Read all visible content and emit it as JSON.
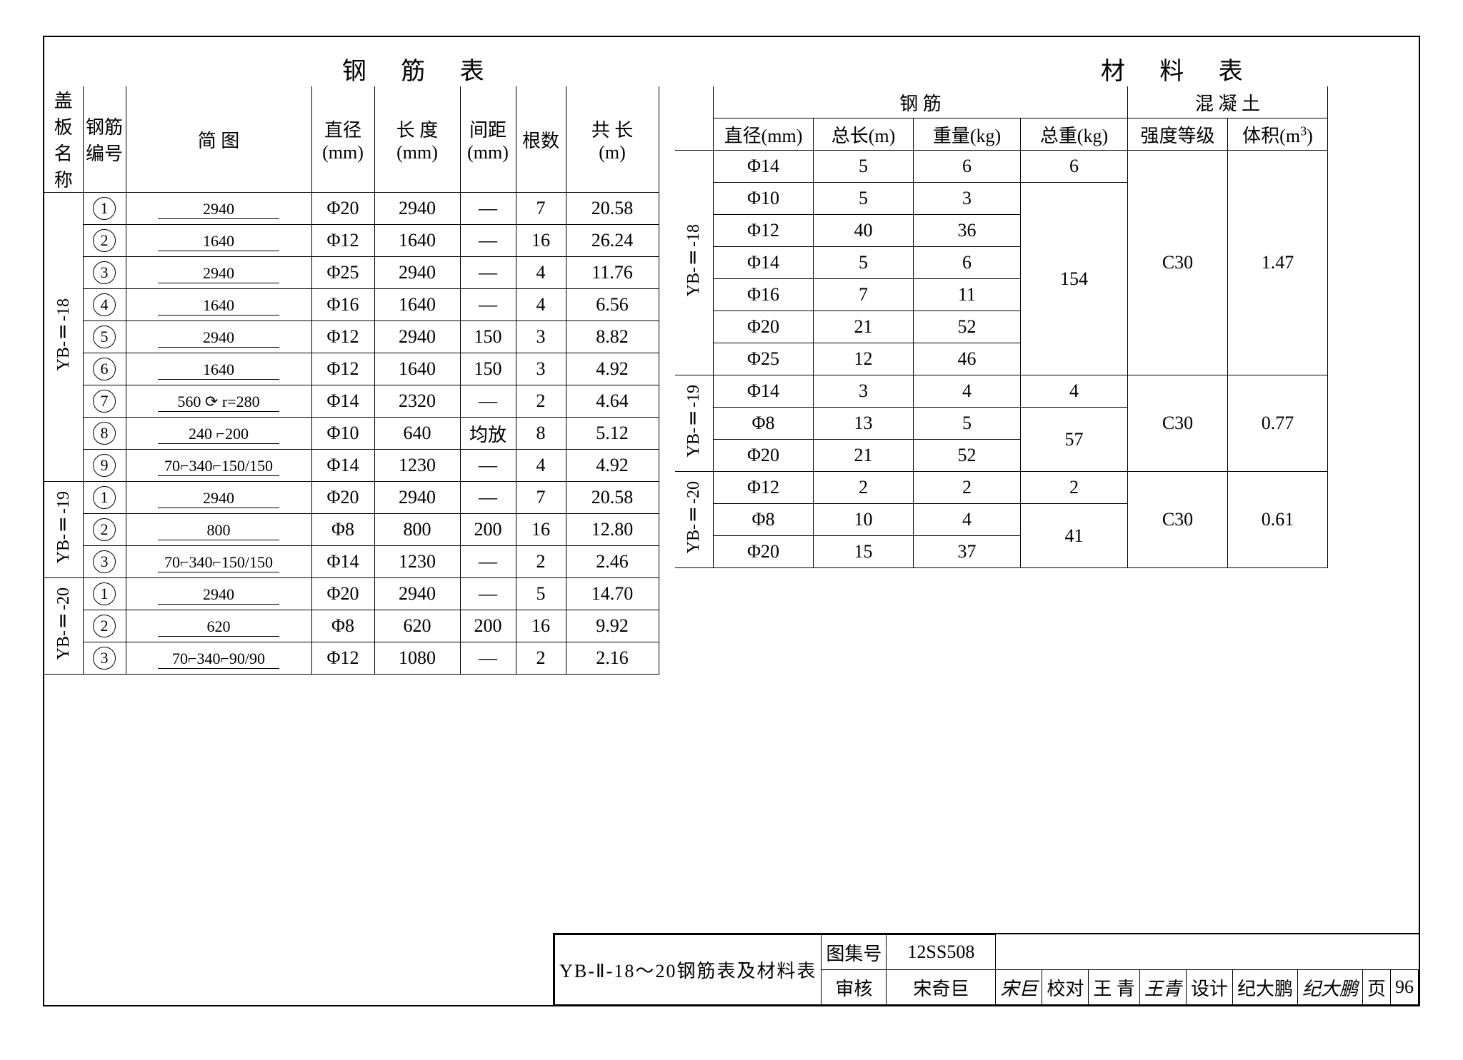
{
  "titles": {
    "left": "钢 筋 表",
    "right": "材 料 表"
  },
  "rebarHeader": {
    "name": "盖板\n名称",
    "num": "钢筋\n编号",
    "diagram": "简    图",
    "dia": "直径\n(mm)",
    "len": "长 度\n(mm)",
    "spacing": "间距\n(mm)",
    "qty": "根数",
    "total": "共 长\n(m)"
  },
  "rebarGroups": [
    {
      "label": "YB-Ⅱ-18",
      "rows": [
        {
          "n": "1",
          "dia": "2940",
          "d": "Φ20",
          "len": "2940",
          "sp": "—",
          "q": "7",
          "tot": "20.58"
        },
        {
          "n": "2",
          "dia": "1640",
          "d": "Φ12",
          "len": "1640",
          "sp": "—",
          "q": "16",
          "tot": "26.24"
        },
        {
          "n": "3",
          "dia": "2940",
          "d": "Φ25",
          "len": "2940",
          "sp": "—",
          "q": "4",
          "tot": "11.76"
        },
        {
          "n": "4",
          "dia": "1640",
          "d": "Φ16",
          "len": "1640",
          "sp": "—",
          "q": "4",
          "tot": "6.56"
        },
        {
          "n": "5",
          "dia": "2940",
          "d": "Φ12",
          "len": "2940",
          "sp": "150",
          "q": "3",
          "tot": "8.82"
        },
        {
          "n": "6",
          "dia": "1640",
          "d": "Φ12",
          "len": "1640",
          "sp": "150",
          "q": "3",
          "tot": "4.92"
        },
        {
          "n": "7",
          "dia": "560 ⟳ r=280",
          "d": "Φ14",
          "len": "2320",
          "sp": "—",
          "q": "2",
          "tot": "4.64"
        },
        {
          "n": "8",
          "dia": "240 ⌐200",
          "d": "Φ10",
          "len": "640",
          "sp": "均放",
          "q": "8",
          "tot": "5.12"
        },
        {
          "n": "9",
          "dia": "70⌐340⌐150/150",
          "d": "Φ14",
          "len": "1230",
          "sp": "—",
          "q": "4",
          "tot": "4.92"
        }
      ]
    },
    {
      "label": "YB-Ⅱ-19",
      "rows": [
        {
          "n": "1",
          "dia": "2940",
          "d": "Φ20",
          "len": "2940",
          "sp": "—",
          "q": "7",
          "tot": "20.58"
        },
        {
          "n": "2",
          "dia": "800",
          "d": "Φ8",
          "len": "800",
          "sp": "200",
          "q": "16",
          "tot": "12.80"
        },
        {
          "n": "3",
          "dia": "70⌐340⌐150/150",
          "d": "Φ14",
          "len": "1230",
          "sp": "—",
          "q": "2",
          "tot": "2.46"
        }
      ]
    },
    {
      "label": "YB-Ⅱ-20",
      "rows": [
        {
          "n": "1",
          "dia": "2940",
          "d": "Φ20",
          "len": "2940",
          "sp": "—",
          "q": "5",
          "tot": "14.70"
        },
        {
          "n": "2",
          "dia": "620",
          "d": "Φ8",
          "len": "620",
          "sp": "200",
          "q": "16",
          "tot": "9.92"
        },
        {
          "n": "3",
          "dia": "70⌐340⌐90/90",
          "d": "Φ12",
          "len": "1080",
          "sp": "—",
          "q": "2",
          "tot": "2.16"
        }
      ]
    }
  ],
  "matHeader": {
    "steel": "钢    筋",
    "concrete": "混 凝 土",
    "dia": "直径(mm)",
    "tlen": "总长(m)",
    "wt": "重量(kg)",
    "twt": "总重(kg)",
    "grade": "强度等级",
    "vol": "体积(m³)"
  },
  "matGroups": [
    {
      "label": "YB-Ⅱ-18",
      "grade": "C30",
      "vol": "1.47",
      "rows": [
        {
          "d": "Φ14",
          "l": "5",
          "w": "6",
          "tw": "6"
        },
        {
          "d": "Φ10",
          "l": "5",
          "w": "3"
        },
        {
          "d": "Φ12",
          "l": "40",
          "w": "36"
        },
        {
          "d": "Φ14",
          "l": "5",
          "w": "6"
        },
        {
          "d": "Φ16",
          "l": "7",
          "w": "11",
          "tw": "154"
        },
        {
          "d": "Φ20",
          "l": "21",
          "w": "52"
        },
        {
          "d": "Φ25",
          "l": "12",
          "w": "46"
        }
      ]
    },
    {
      "label": "YB-Ⅱ-19",
      "grade": "C30",
      "vol": "0.77",
      "rows": [
        {
          "d": "Φ14",
          "l": "3",
          "w": "4",
          "tw": "4"
        },
        {
          "d": "Φ8",
          "l": "13",
          "w": "5",
          "tw": "57"
        },
        {
          "d": "Φ20",
          "l": "21",
          "w": "52"
        }
      ]
    },
    {
      "label": "YB-Ⅱ-20",
      "grade": "C30",
      "vol": "0.61",
      "rows": [
        {
          "d": "Φ12",
          "l": "2",
          "w": "2",
          "tw": "2"
        },
        {
          "d": "Φ8",
          "l": "10",
          "w": "4",
          "tw": "41"
        },
        {
          "d": "Φ20",
          "l": "15",
          "w": "37"
        }
      ]
    }
  ],
  "titleblock": {
    "title": "YB-Ⅱ-18～20钢筋表及材料表",
    "setLabel": "图集号",
    "set": "12SS508",
    "review": "审核",
    "reviewer": "宋奇巨",
    "reviewSig": "宋巨",
    "check": "校对",
    "checker": "王 青",
    "checkSig": "王青",
    "design": "设计",
    "designer": "纪大鹏",
    "designSig": "纪大鹏",
    "pageLabel": "页",
    "page": "96"
  }
}
